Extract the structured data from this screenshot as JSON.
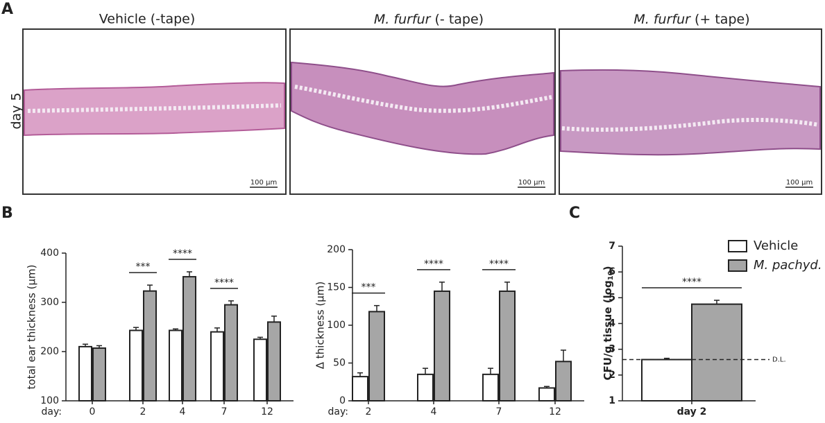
{
  "panel_a": {
    "letter": "A",
    "row_label": "day 5",
    "scale_bar": "100 µm",
    "images": [
      {
        "title": "Vehicle (-tape)"
      },
      {
        "title_italic": "M. furfur",
        "title_rest": " (- tape)"
      },
      {
        "title_italic": "M. furfur",
        "title_rest": " (+ tape)"
      }
    ]
  },
  "panel_b_letter": "B",
  "panel_c_letter": "C",
  "chart_data": [
    {
      "type": "bar",
      "ylabel": "total ear thickness (µm)",
      "xlabel": "day:",
      "categories": [
        "0",
        "2",
        "4",
        "7",
        "12"
      ],
      "ylim": [
        100,
        400
      ],
      "yticks": [
        100,
        200,
        300,
        400
      ],
      "series": [
        {
          "color": "#ffffff",
          "values": [
            210,
            243,
            243,
            240,
            225
          ],
          "errors": [
            5,
            6,
            3,
            8,
            4
          ]
        },
        {
          "color": "#a6a6a6",
          "values": [
            207,
            323,
            352,
            295,
            260
          ],
          "errors": [
            5,
            12,
            10,
            8,
            12
          ]
        }
      ],
      "annotations": [
        {
          "category": "2",
          "text": "***"
        },
        {
          "category": "4",
          "text": "****"
        },
        {
          "category": "7",
          "text": "****"
        }
      ]
    },
    {
      "type": "bar",
      "ylabel": "Δ thickness (µm)",
      "xlabel": "day:",
      "categories": [
        "2",
        "4",
        "7",
        "12"
      ],
      "ylim": [
        0,
        200
      ],
      "yticks": [
        0,
        50,
        100,
        150,
        200
      ],
      "series": [
        {
          "color": "#ffffff",
          "values": [
            32,
            35,
            35,
            17
          ],
          "errors": [
            5,
            8,
            8,
            2
          ]
        },
        {
          "color": "#a6a6a6",
          "values": [
            118,
            145,
            145,
            52
          ],
          "errors": [
            8,
            12,
            12,
            15
          ]
        }
      ],
      "annotations": [
        {
          "category": "2",
          "text": "***"
        },
        {
          "category": "4",
          "text": "****"
        },
        {
          "category": "7",
          "text": "****"
        }
      ]
    },
    {
      "type": "bar",
      "ylabel_parts": [
        "CFU/g tissue (log",
        "10",
        ")"
      ],
      "categories": [
        "day 2"
      ],
      "ylim": [
        1,
        7
      ],
      "yticks": [
        1,
        2,
        3,
        4,
        5,
        6,
        7
      ],
      "detection_limit": {
        "value": 2.6,
        "label": "D.L."
      },
      "series": [
        {
          "name": "Vehicle",
          "color": "#ffffff",
          "values": [
            2.6
          ],
          "errors": [
            0.05
          ]
        },
        {
          "name": "M. pachyd.",
          "color": "#a6a6a6",
          "values": [
            4.75
          ],
          "errors": [
            0.15
          ]
        }
      ],
      "annotations": [
        {
          "category": "day 2",
          "text": "****"
        }
      ]
    }
  ]
}
